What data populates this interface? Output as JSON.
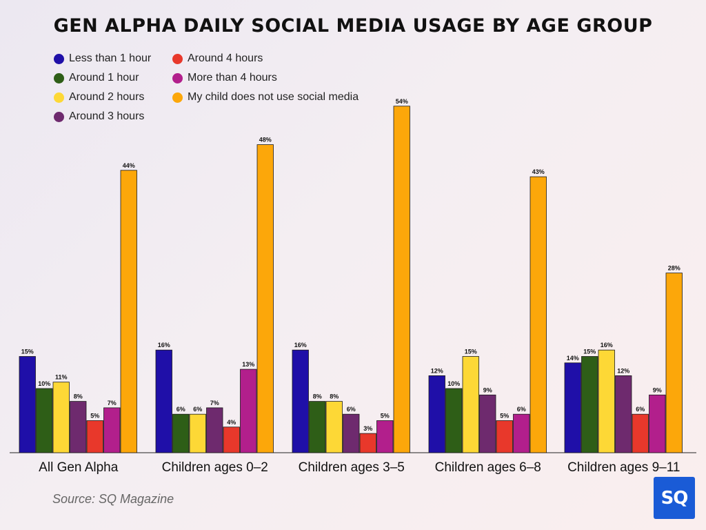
{
  "chart_data": {
    "type": "bar",
    "title": "GEN ALPHA DAILY SOCIAL MEDIA USAGE BY AGE GROUP",
    "xlabel": "",
    "ylabel": "",
    "ylim": [
      0,
      54
    ],
    "value_suffix": "%",
    "legend_position": "top-left",
    "categories": [
      "All Gen Alpha",
      "Children ages 0–2",
      "Children ages 3–5",
      "Children ages 6–8",
      "Children ages 9–11"
    ],
    "series": [
      {
        "name": "Less than 1 hour",
        "color": "#1f0fa8",
        "values": [
          15,
          16,
          16,
          12,
          14
        ]
      },
      {
        "name": "Around 1 hour",
        "color": "#2e5e17",
        "values": [
          10,
          6,
          8,
          10,
          15
        ]
      },
      {
        "name": "Around 2 hours",
        "color": "#fdd836",
        "values": [
          11,
          6,
          8,
          15,
          16
        ]
      },
      {
        "name": "Around 3 hours",
        "color": "#6e2a6e",
        "values": [
          8,
          7,
          6,
          9,
          12
        ]
      },
      {
        "name": "Around 4 hours",
        "color": "#e8382b",
        "values": [
          5,
          4,
          3,
          5,
          6
        ]
      },
      {
        "name": "More than 4 hours",
        "color": "#b21f8c",
        "values": [
          7,
          13,
          5,
          6,
          9
        ]
      },
      {
        "name": "My child does not use social media",
        "color": "#fca70a",
        "values": [
          44,
          48,
          54,
          43,
          28
        ]
      }
    ]
  },
  "source": "Source: SQ Magazine",
  "logo": "SQ"
}
